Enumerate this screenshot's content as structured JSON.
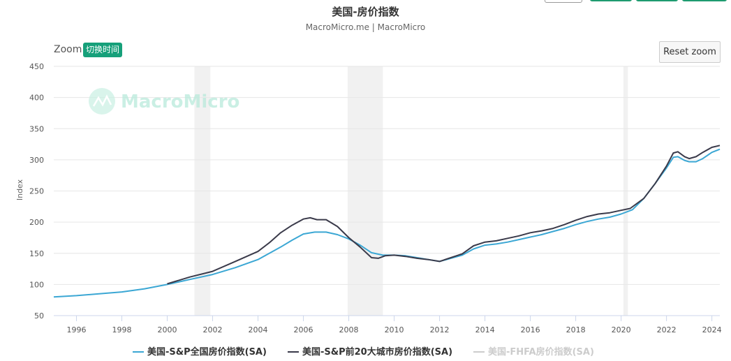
{
  "chart_data": {
    "type": "line",
    "title": "美国-房价指数",
    "subtitle": "MacroMicro.me | MacroMicro",
    "ylabel": "Index",
    "xlabel": "",
    "ylim": [
      50,
      450
    ],
    "xlim": [
      1995.0,
      2024.35
    ],
    "yticks": [
      50,
      100,
      150,
      200,
      250,
      300,
      350,
      400,
      450
    ],
    "xticks": [
      "1996",
      "1998",
      "2000",
      "2002",
      "2004",
      "2006",
      "2008",
      "2010",
      "2012",
      "2014",
      "2016",
      "2018",
      "2020",
      "2022",
      "2024"
    ],
    "grid": true,
    "legend_position": "bottom",
    "recessions": [
      [
        2001.2,
        2001.9
      ],
      [
        2007.95,
        2009.5
      ],
      [
        2020.1,
        2020.3
      ]
    ],
    "series": [
      {
        "name": "美国-S&P全国房价指数(SA)",
        "color": "#3ba7d4",
        "visible": true,
        "x": [
          1995.0,
          1996.0,
          1997.0,
          1998.0,
          1999.0,
          2000.0,
          2001.0,
          2002.0,
          2003.0,
          2004.0,
          2005.0,
          2005.5,
          2006.0,
          2006.5,
          2007.0,
          2007.5,
          2008.0,
          2008.5,
          2009.0,
          2009.5,
          2010.0,
          2010.5,
          2011.0,
          2011.5,
          2012.0,
          2012.5,
          2013.0,
          2013.5,
          2014.0,
          2014.5,
          2015.0,
          2015.5,
          2016.0,
          2016.5,
          2017.0,
          2017.5,
          2018.0,
          2018.5,
          2019.0,
          2019.5,
          2020.0,
          2020.5,
          2021.0,
          2021.5,
          2022.0,
          2022.3,
          2022.5,
          2022.8,
          2023.0,
          2023.3,
          2023.6,
          2024.0,
          2024.35
        ],
        "values": [
          80,
          82,
          85,
          88,
          93,
          100,
          108,
          116,
          127,
          140,
          160,
          171,
          181,
          184,
          184,
          180,
          173,
          163,
          151,
          147,
          147,
          146,
          143,
          140,
          137,
          142,
          147,
          157,
          163,
          165,
          168,
          172,
          176,
          180,
          185,
          190,
          196,
          201,
          205,
          208,
          213,
          220,
          238,
          262,
          287,
          304,
          305,
          299,
          297,
          297,
          302,
          312,
          317
        ]
      },
      {
        "name": "美国-S&P前20大城市房价指数(SA)",
        "color": "#3a3a4a",
        "visible": true,
        "x": [
          2000.0,
          2001.0,
          2002.0,
          2003.0,
          2004.0,
          2004.5,
          2005.0,
          2005.5,
          2006.0,
          2006.3,
          2006.6,
          2007.0,
          2007.5,
          2008.0,
          2008.5,
          2009.0,
          2009.3,
          2009.6,
          2010.0,
          2010.5,
          2011.0,
          2011.5,
          2012.0,
          2012.5,
          2013.0,
          2013.5,
          2014.0,
          2014.5,
          2015.0,
          2015.5,
          2016.0,
          2016.5,
          2017.0,
          2017.5,
          2018.0,
          2018.5,
          2019.0,
          2019.5,
          2020.0,
          2020.4,
          2021.0,
          2021.5,
          2022.0,
          2022.3,
          2022.5,
          2022.8,
          2023.0,
          2023.3,
          2023.6,
          2024.0,
          2024.35
        ],
        "values": [
          101,
          112,
          121,
          137,
          153,
          167,
          183,
          195,
          205,
          207,
          204,
          204,
          193,
          175,
          160,
          143,
          142,
          146,
          147,
          145,
          142,
          140,
          137,
          143,
          149,
          162,
          168,
          170,
          174,
          178,
          183,
          186,
          190,
          196,
          203,
          209,
          213,
          215,
          219,
          222,
          238,
          262,
          290,
          311,
          313,
          305,
          302,
          305,
          312,
          320,
          323
        ]
      },
      {
        "name": "美国-FHFA房价指数(SA)",
        "color": "#cccccc",
        "visible": false,
        "x": [],
        "values": []
      }
    ],
    "watermark": "MacroMicro"
  },
  "controls": {
    "zoom_label": "Zoom",
    "switch_time_label": "切换时间",
    "reset_zoom_label": "Reset zoom"
  }
}
